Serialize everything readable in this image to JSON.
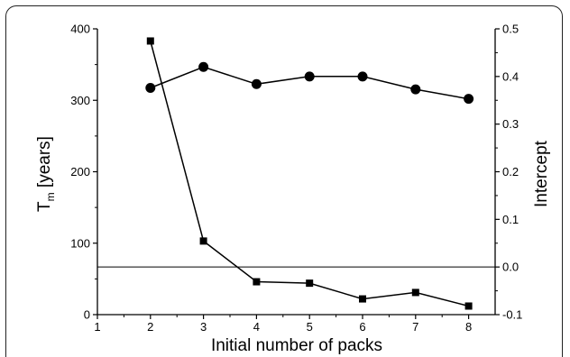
{
  "chart_data": {
    "type": "line",
    "xlabel": "Initial number of packs",
    "ylabel_left": "T",
    "ylabel_left_sub": "m",
    "ylabel_left_unit": " [years]",
    "ylabel_right": "Intercept",
    "x_ticks": [
      "1",
      "2",
      "3",
      "4",
      "5",
      "6",
      "7",
      "8"
    ],
    "xlim": [
      1,
      8.5
    ],
    "y_left_ticks": [
      "0",
      "100",
      "200",
      "300",
      "400"
    ],
    "ylim_left": [
      0,
      400
    ],
    "y_right_ticks": [
      "-0.1",
      "0.0",
      "0.1",
      "0.2",
      "0.3",
      "0.4",
      "0.5"
    ],
    "ylim_right": [
      -0.1,
      0.5
    ],
    "reference_line_right": 0.0,
    "series": [
      {
        "marker": "square",
        "axis": "left",
        "x": [
          2,
          3,
          4,
          5,
          6,
          7,
          8
        ],
        "values": [
          383,
          103,
          46,
          44,
          22,
          31,
          12
        ]
      },
      {
        "marker": "circle",
        "axis": "right",
        "x": [
          2,
          3,
          4,
          5,
          6,
          7,
          8
        ],
        "values": [
          0.376,
          0.42,
          0.384,
          0.4,
          0.4,
          0.373,
          0.353
        ]
      }
    ],
    "grid": false,
    "legend": "none",
    "color": "#000000"
  }
}
